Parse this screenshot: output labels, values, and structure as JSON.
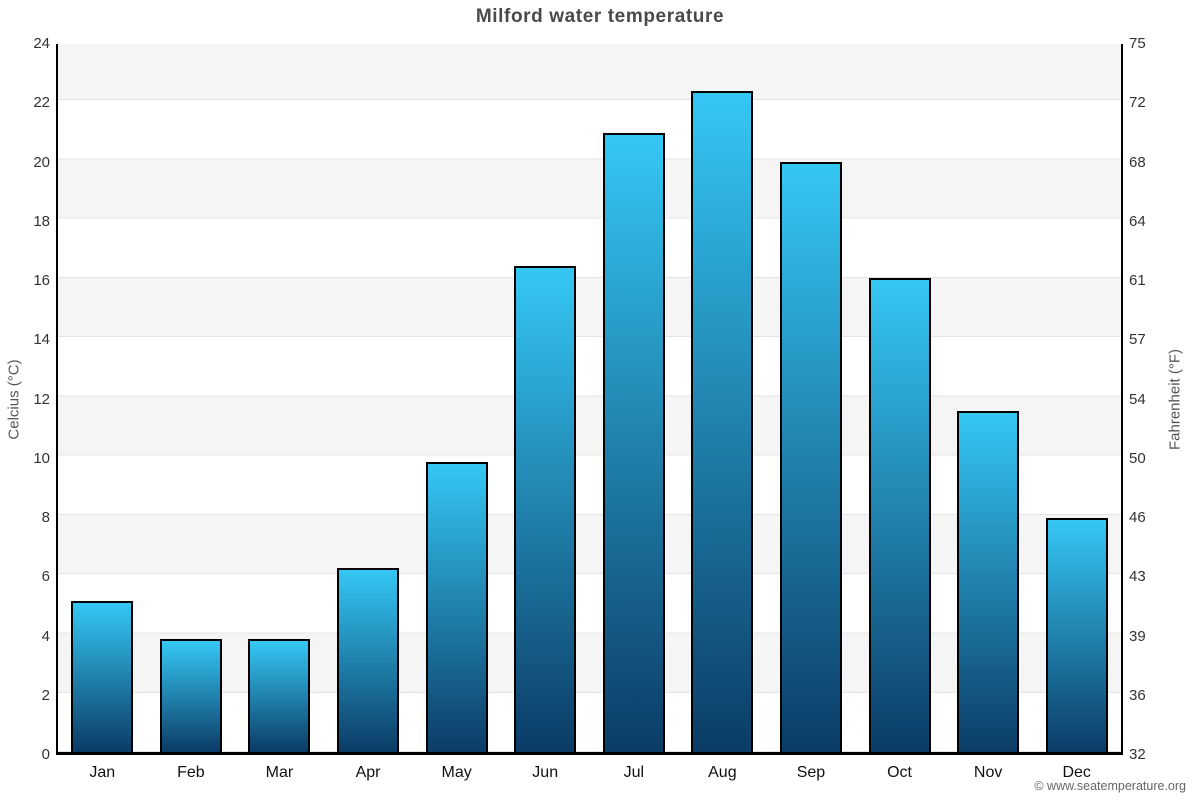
{
  "title": "Milford water temperature",
  "watermark": "© www.seatemperature.org",
  "chart_data": {
    "type": "bar",
    "title": "Milford water temperature",
    "categories": [
      "Jan",
      "Feb",
      "Mar",
      "Apr",
      "May",
      "Jun",
      "Jul",
      "Aug",
      "Sep",
      "Oct",
      "Nov",
      "Dec"
    ],
    "series": [
      {
        "name": "Water temperature",
        "unit": "°C",
        "values": [
          5.1,
          3.8,
          3.8,
          6.2,
          9.8,
          16.4,
          20.9,
          22.3,
          19.9,
          16.0,
          11.5,
          7.9
        ]
      }
    ],
    "ylabel_left": "Celcius (°C)",
    "ylabel_right": "Fahrenheit (°F)",
    "y_left_ticks": [
      0,
      2,
      4,
      6,
      8,
      10,
      12,
      14,
      16,
      18,
      20,
      22,
      24
    ],
    "y_right_ticks": [
      32,
      36,
      39,
      43,
      46,
      50,
      54,
      57,
      61,
      64,
      68,
      72,
      75
    ],
    "ylim": [
      0,
      24
    ],
    "grid": true,
    "legend": "none",
    "bar_color_top": "#35c7f4",
    "bar_color_bottom": "#0b3c66",
    "bar_border_color": "#000000",
    "band_color": "#f5f5f5",
    "grid_color": "#e4e4e4",
    "axis_color": "#000000"
  }
}
